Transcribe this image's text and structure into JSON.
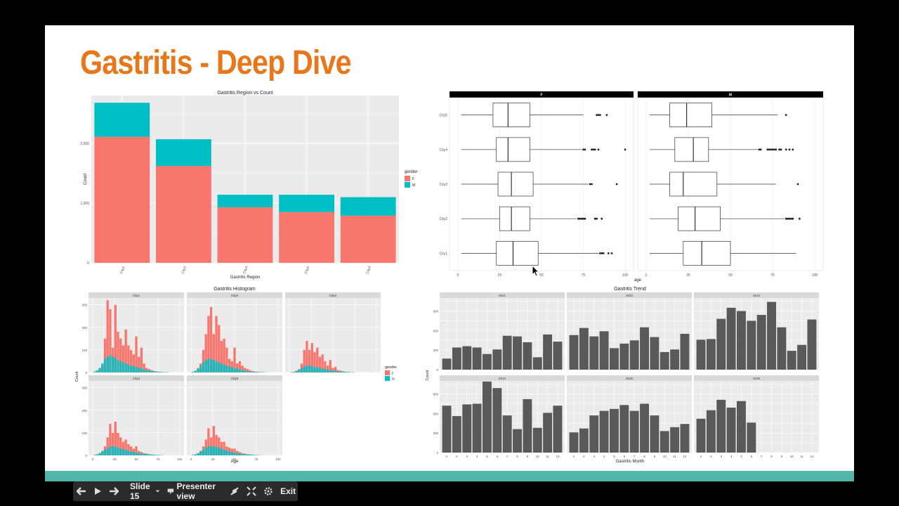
{
  "slide": {
    "title": "Gastritis - Deep Dive",
    "accent_color": "#e8761b",
    "band_color": "#53b6aa"
  },
  "colors": {
    "F": "#f8766d",
    "M": "#00bfc4",
    "bar": "#595959",
    "panel": "#ebebeb",
    "strip": "#d9d9d9"
  },
  "controls": {
    "prev_icon": "arrow-left-icon",
    "play_icon": "play-icon",
    "next_icon": "arrow-right-icon",
    "slide_label": "Slide 15",
    "presenter_label": "Presenter view",
    "exit_label": "Exit"
  },
  "chart_data": [
    {
      "type": "bar",
      "title": "Gastritis Region vs Count",
      "xlabel": "Gastritis Region",
      "ylabel": "Count",
      "categories": [
        "City1",
        "City2",
        "City3",
        "City5",
        "City4"
      ],
      "series": [
        {
          "name": "F",
          "values": [
            2110,
            1620,
            930,
            850,
            790
          ]
        },
        {
          "name": "M",
          "values": [
            570,
            450,
            210,
            290,
            310
          ]
        }
      ],
      "yticks": [
        "0",
        "1,000",
        "2,000"
      ],
      "ylim": [
        0,
        2800
      ],
      "legend": {
        "title": "gender",
        "position": "right",
        "entries": [
          "F",
          "M"
        ]
      },
      "stacked": true
    },
    {
      "type": "boxplot",
      "facets": [
        "F",
        "M"
      ],
      "xlabel": "age",
      "categories": [
        "City5",
        "City4",
        "City3",
        "City2",
        "City1"
      ],
      "xticks": [
        "0",
        "25",
        "50",
        "75",
        "100"
      ],
      "xlim": [
        -5,
        105
      ],
      "panels": [
        {
          "facet": "F",
          "boxes": [
            {
              "cat": "City5",
              "wmin": 2,
              "q1": 21,
              "med": 30,
              "q3": 43,
              "wmax": 75,
              "out": [
                83,
                84,
                85,
                89
              ]
            },
            {
              "cat": "City4",
              "wmin": 2,
              "q1": 23,
              "med": 30,
              "q3": 43,
              "wmax": 74,
              "out": [
                75,
                76,
                80,
                81,
                82,
                84,
                100
              ]
            },
            {
              "cat": "City3",
              "wmin": 2,
              "q1": 24,
              "med": 32,
              "q3": 45,
              "wmax": 78,
              "out": [
                79,
                80,
                95
              ]
            },
            {
              "cat": "City2",
              "wmin": 2,
              "q1": 25,
              "med": 32,
              "q3": 43,
              "wmax": 71,
              "out": [
                72,
                73,
                74,
                75,
                76,
                82,
                83,
                86
              ]
            },
            {
              "cat": "City1",
              "wmin": 2,
              "q1": 23,
              "med": 33,
              "q3": 48,
              "wmax": 84,
              "out": [
                85,
                86,
                87,
                90,
                92
              ]
            }
          ]
        },
        {
          "facet": "M",
          "boxes": [
            {
              "cat": "City5",
              "wmin": 2,
              "q1": 14,
              "med": 24,
              "q3": 39,
              "wmax": 78,
              "out": [
                83
              ]
            },
            {
              "cat": "City4",
              "wmin": 2,
              "q1": 17,
              "med": 28,
              "q3": 37,
              "wmax": 66,
              "out": [
                67,
                68,
                72,
                73,
                74,
                75,
                76,
                77,
                79,
                80,
                83,
                85,
                87
              ]
            },
            {
              "cat": "City3",
              "wmin": 2,
              "q1": 14,
              "med": 22,
              "q3": 42,
              "wmax": 77,
              "out": [
                90
              ]
            },
            {
              "cat": "City2",
              "wmin": 2,
              "q1": 19,
              "med": 29,
              "q3": 44,
              "wmax": 82,
              "out": [
                83,
                84,
                85,
                86,
                87,
                91
              ]
            },
            {
              "cat": "City1",
              "wmin": 2,
              "q1": 22,
              "med": 33,
              "q3": 50,
              "wmax": 89,
              "out": []
            }
          ]
        }
      ]
    },
    {
      "type": "histogram",
      "title": "Gastritis Histogram",
      "xlabel": "Age",
      "ylabel": "Count",
      "facets": [
        "City1",
        "City2",
        "City3",
        "City4",
        "City5"
      ],
      "yticks": [
        "0",
        "100",
        "200",
        "300"
      ],
      "ylim": [
        0,
        330
      ],
      "xticks": [
        "0",
        "25",
        "50",
        "75",
        "100"
      ],
      "xlim": [
        -5,
        105
      ],
      "legend": {
        "title": "gender",
        "position": "right",
        "entries": [
          "F",
          "M"
        ]
      },
      "bin_centers": [
        2,
        5,
        8,
        11,
        14,
        17,
        20,
        23,
        26,
        29,
        32,
        35,
        38,
        41,
        44,
        47,
        50,
        53,
        56,
        59,
        62,
        65,
        68,
        71,
        74,
        77,
        80,
        83,
        86,
        89
      ],
      "panels": [
        {
          "facet": "City1",
          "F": [
            3,
            8,
            20,
            30,
            150,
            320,
            280,
            110,
            300,
            180,
            150,
            120,
            190,
            120,
            100,
            80,
            160,
            70,
            110,
            40,
            20,
            15,
            10,
            6,
            4,
            3,
            2,
            1,
            1,
            0
          ],
          "M": [
            4,
            10,
            20,
            40,
            60,
            70,
            75,
            70,
            65,
            55,
            50,
            45,
            40,
            35,
            30,
            28,
            25,
            22,
            18,
            14,
            10,
            8,
            6,
            5,
            4,
            3,
            2,
            1,
            1,
            0
          ]
        },
        {
          "facet": "City2",
          "F": [
            3,
            6,
            20,
            40,
            100,
            170,
            250,
            290,
            170,
            250,
            210,
            140,
            150,
            110,
            60,
            50,
            110,
            40,
            50,
            30,
            20,
            15,
            10,
            6,
            4,
            3,
            2,
            1,
            1,
            0
          ],
          "M": [
            3,
            8,
            18,
            30,
            45,
            55,
            60,
            60,
            55,
            50,
            45,
            40,
            35,
            30,
            26,
            24,
            20,
            17,
            14,
            11,
            8,
            6,
            5,
            4,
            3,
            2,
            2,
            1,
            1,
            0
          ]
        },
        {
          "facet": "City3",
          "F": [
            1,
            3,
            8,
            15,
            40,
            100,
            140,
            100,
            130,
            90,
            110,
            70,
            80,
            50,
            30,
            55,
            20,
            25,
            10,
            8,
            5,
            3,
            2,
            1,
            1,
            0,
            0,
            0,
            0,
            0
          ],
          "M": [
            1,
            3,
            6,
            12,
            20,
            25,
            30,
            30,
            28,
            25,
            22,
            20,
            18,
            15,
            12,
            10,
            8,
            7,
            6,
            5,
            4,
            3,
            2,
            1,
            1,
            0,
            0,
            0,
            0,
            0
          ]
        },
        {
          "facet": "City4",
          "F": [
            2,
            4,
            10,
            20,
            40,
            80,
            140,
            100,
            150,
            100,
            80,
            60,
            70,
            50,
            40,
            30,
            40,
            20,
            15,
            10,
            8,
            5,
            3,
            2,
            1,
            1,
            0,
            0,
            0,
            0
          ],
          "M": [
            2,
            5,
            10,
            18,
            25,
            30,
            40,
            40,
            40,
            35,
            30,
            28,
            25,
            20,
            18,
            15,
            12,
            10,
            8,
            7,
            6,
            5,
            4,
            3,
            2,
            1,
            1,
            0,
            0,
            0
          ]
        },
        {
          "facet": "City5",
          "F": [
            2,
            4,
            10,
            20,
            40,
            70,
            120,
            80,
            130,
            90,
            80,
            60,
            60,
            40,
            35,
            30,
            30,
            20,
            15,
            10,
            8,
            5,
            3,
            2,
            1,
            1,
            0,
            0,
            0,
            0
          ],
          "M": [
            2,
            5,
            10,
            18,
            25,
            35,
            40,
            40,
            40,
            38,
            35,
            30,
            25,
            22,
            18,
            15,
            12,
            10,
            8,
            7,
            6,
            5,
            4,
            3,
            2,
            1,
            1,
            0,
            0,
            0
          ]
        }
      ]
    },
    {
      "type": "bar",
      "title": "Gastritis Trend",
      "xlabel": "Gastritis Month",
      "ylabel": "Count",
      "facets": [
        "2011",
        "2012",
        "2013",
        "2014",
        "2015",
        "2016"
      ],
      "categories": [
        "1",
        "2",
        "3",
        "4",
        "5",
        "6",
        "7",
        "8",
        "9",
        "10",
        "11",
        "12"
      ],
      "yticks": [
        "0",
        "300",
        "600",
        "900"
      ],
      "ylim": [
        0,
        1100
      ],
      "panels": [
        {
          "facet": "2011",
          "values": [
            170,
            340,
            360,
            340,
            240,
            310,
            520,
            510,
            420,
            190,
            540,
            430
          ]
        },
        {
          "facet": "2012",
          "values": [
            530,
            640,
            510,
            590,
            330,
            400,
            450,
            650,
            500,
            270,
            310,
            550
          ]
        },
        {
          "facet": "2013",
          "values": [
            460,
            470,
            780,
            950,
            900,
            750,
            840,
            1040,
            650,
            290,
            380,
            770
          ]
        },
        {
          "facet": "2014",
          "values": [
            720,
            560,
            740,
            750,
            1090,
            990,
            570,
            360,
            820,
            380,
            610,
            720
          ]
        },
        {
          "facet": "2015",
          "values": [
            310,
            370,
            570,
            640,
            670,
            730,
            640,
            750,
            570,
            330,
            390,
            440
          ]
        },
        {
          "facet": "2016",
          "values": [
            520,
            650,
            810,
            690,
            790,
            460,
            null,
            null,
            null,
            null,
            null,
            null
          ]
        }
      ]
    }
  ]
}
